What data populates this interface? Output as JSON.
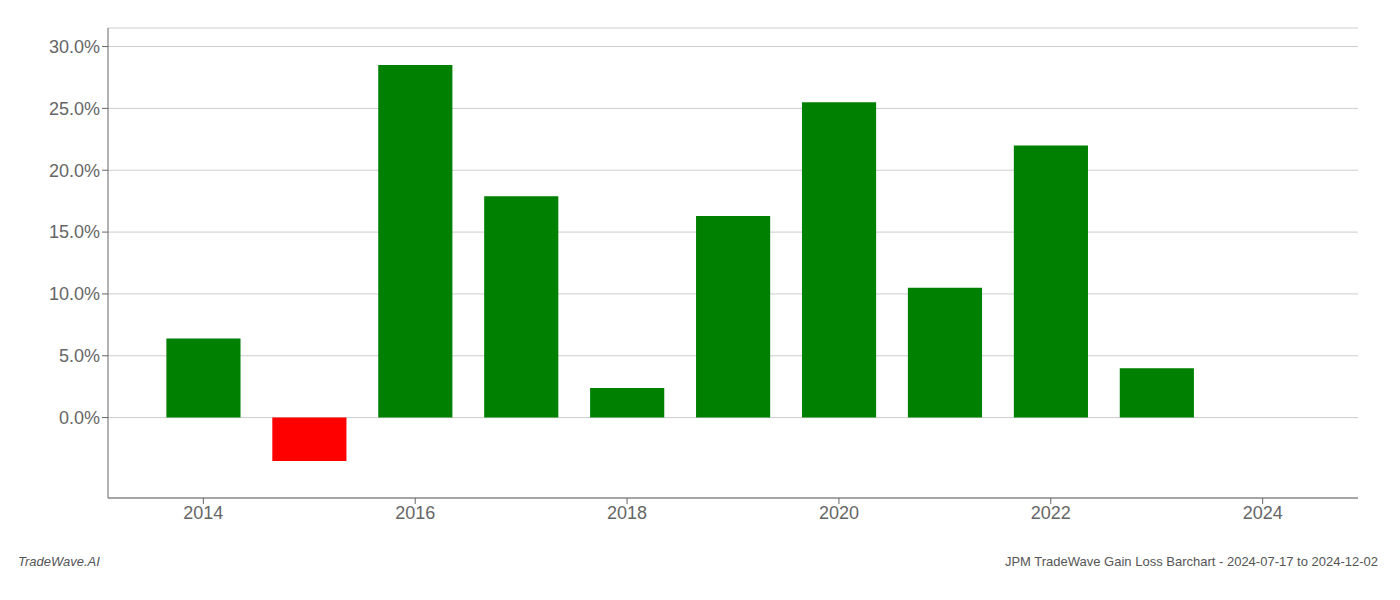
{
  "chart_data": {
    "type": "bar",
    "x": [
      2014,
      2015,
      2016,
      2017,
      2018,
      2019,
      2020,
      2021,
      2022,
      2023
    ],
    "values": [
      0.064,
      -0.035,
      0.285,
      0.179,
      0.024,
      0.163,
      0.255,
      0.105,
      0.22,
      0.04
    ],
    "colors": [
      "#008000",
      "#ff0000",
      "#008000",
      "#008000",
      "#008000",
      "#008000",
      "#008000",
      "#008000",
      "#008000",
      "#008000"
    ],
    "xlim": [
      2013.1,
      2024.9
    ],
    "xticks": [
      2014,
      2016,
      2018,
      2020,
      2022,
      2024
    ],
    "ylim": [
      -0.065,
      0.315
    ],
    "yticks": [
      {
        "value": 0.0,
        "label": "0.0%"
      },
      {
        "value": 0.05,
        "label": "5.0%"
      },
      {
        "value": 0.1,
        "label": "10.0%"
      },
      {
        "value": 0.15,
        "label": "15.0%"
      },
      {
        "value": 0.2,
        "label": "20.0%"
      },
      {
        "value": 0.25,
        "label": "25.0%"
      },
      {
        "value": 0.3,
        "label": "30.0%"
      }
    ],
    "grid": true,
    "annotations": [
      "TradeWave.AI",
      "JPM TradeWave Gain Loss Barchart - 2024-07-17 to 2024-12-02"
    ]
  }
}
